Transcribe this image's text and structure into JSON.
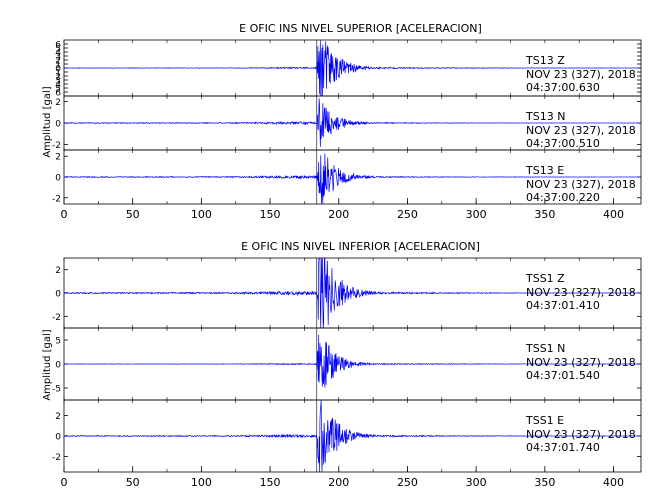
{
  "chart_data": [
    {
      "type": "line",
      "title": "E OFIC INS NIVEL SUPERIOR [ACELERACION]",
      "ylabel": "Amplitud [gal]",
      "xlim": [
        0,
        420
      ],
      "xticks": [
        0,
        50,
        100,
        150,
        200,
        250,
        300,
        350,
        400
      ],
      "signal_onset_s": 184,
      "line_color": "#0000ff",
      "traces": [
        {
          "label": "TS13   Z",
          "date": "NOV 23 (327), 2018",
          "time": "04:37:00.630",
          "ylim": [
            -7,
            7
          ],
          "yticks": [
            -6,
            -5,
            -4,
            -3,
            -2,
            -1,
            0,
            1,
            2,
            3,
            4,
            5,
            6
          ],
          "yticklabels": [
            "6",
            "5",
            "4",
            "3",
            "2",
            "1",
            "0",
            "1",
            "2",
            "3",
            "4",
            "5",
            "6"
          ],
          "peak": 6
        },
        {
          "label": "TS13   N",
          "date": "NOV 23 (327), 2018",
          "time": "04:37:00.510",
          "ylim": [
            -2.5,
            2.5
          ],
          "yticks": [
            -2,
            0,
            2
          ],
          "yticklabels": [
            "-2",
            "0",
            "2"
          ],
          "peak": 2
        },
        {
          "label": "TS13   E",
          "date": "NOV 23 (327), 2018",
          "time": "04:37:00.220",
          "ylim": [
            -2.6,
            2.6
          ],
          "yticks": [
            -2,
            0,
            2
          ],
          "yticklabels": [
            "-2",
            "0",
            "2"
          ],
          "peak": 2.3
        }
      ]
    },
    {
      "type": "line",
      "title": "E OFIC INS NIVEL INFERIOR [ACELERACION]",
      "ylabel": "Amplitud [gal]",
      "xlim": [
        0,
        420
      ],
      "xticks": [
        0,
        50,
        100,
        150,
        200,
        250,
        300,
        350,
        400
      ],
      "signal_onset_s": 184,
      "line_color": "#0000ff",
      "traces": [
        {
          "label": "TSS1   Z",
          "date": "NOV 23 (327), 2018",
          "time": "04:37:01.410",
          "ylim": [
            -3,
            3
          ],
          "yticks": [
            -2,
            0,
            2
          ],
          "yticklabels": [
            "-2",
            "0",
            "2"
          ],
          "peak": 2.8
        },
        {
          "label": "TSS1   N",
          "date": "NOV 23 (327), 2018",
          "time": "04:37:01.540",
          "ylim": [
            -7.5,
            7.5
          ],
          "yticks": [
            -5,
            0,
            5
          ],
          "yticklabels": [
            "-5",
            "0",
            "5"
          ],
          "peak": 6
        },
        {
          "label": "TSS1   E",
          "date": "NOV 23 (327), 2018",
          "time": "04:37:01.740",
          "ylim": [
            -3.5,
            3.5
          ],
          "yticks": [
            -2,
            0,
            2
          ],
          "yticklabels": [
            "-2",
            "0",
            "2"
          ],
          "peak": 3.2
        }
      ]
    }
  ]
}
